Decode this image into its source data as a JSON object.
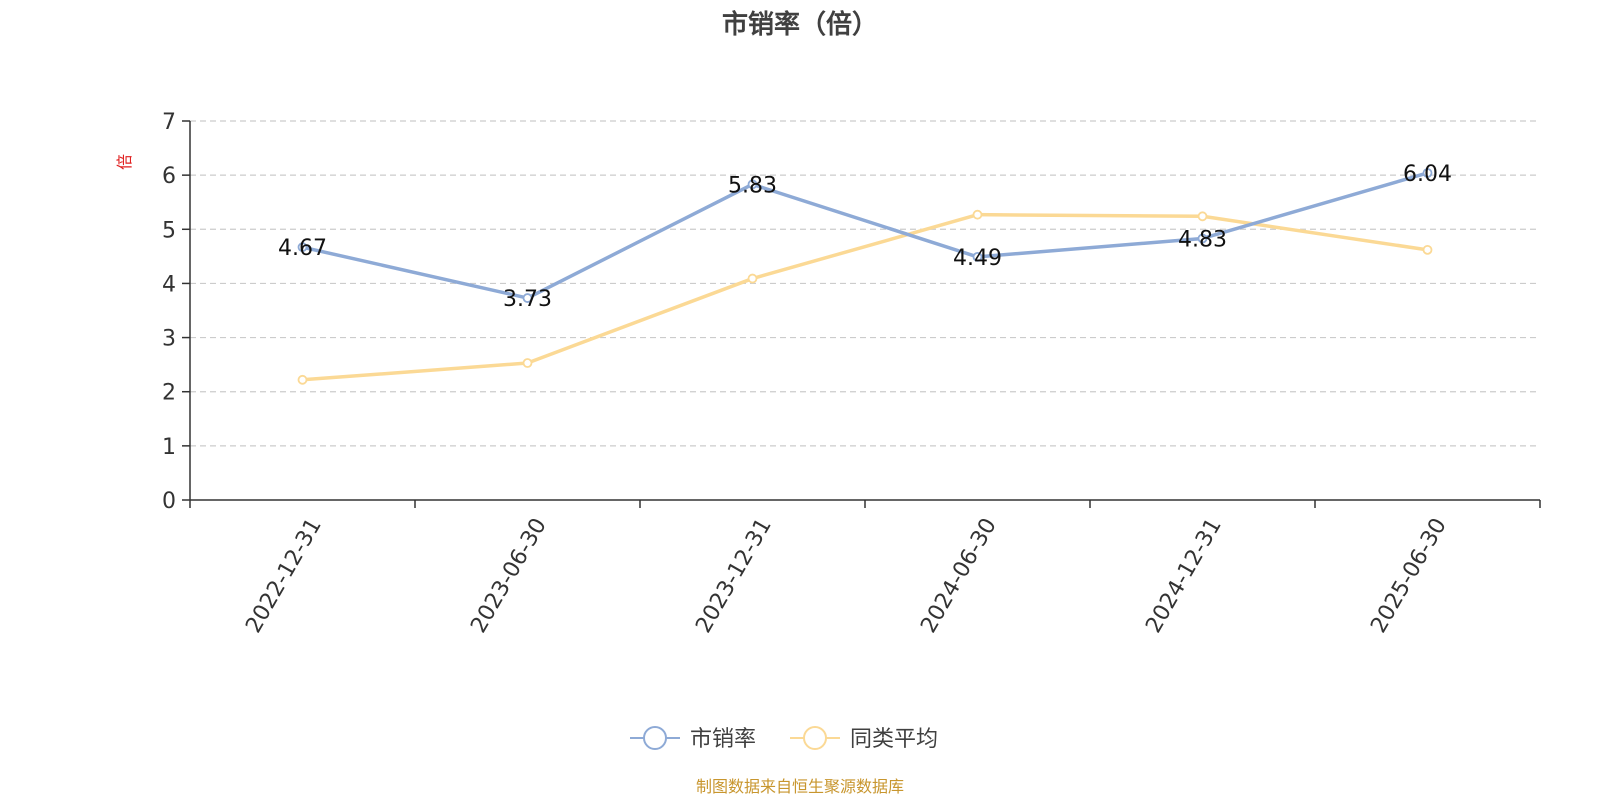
{
  "chart_data": {
    "type": "line",
    "title": "市销率（倍）",
    "ylabel": "倍",
    "xlabel": "",
    "categories": [
      "2022-12-31",
      "2023-06-30",
      "2023-12-31",
      "2024-06-30",
      "2024-12-31",
      "2025-06-30"
    ],
    "ylim": [
      0,
      7
    ],
    "yticks": [
      0,
      1,
      2,
      3,
      4,
      5,
      6,
      7
    ],
    "grid": true,
    "legend_position": "bottom",
    "series": [
      {
        "name": "市销率",
        "color": "#8eaad6",
        "values": [
          4.67,
          3.73,
          5.83,
          4.49,
          4.83,
          6.04
        ],
        "labels": [
          "4.67",
          "3.73",
          "5.83",
          "4.49",
          "4.83",
          "6.04"
        ],
        "show_data_labels": true
      },
      {
        "name": "同类平均",
        "color": "#fbd995",
        "values": [
          2.22,
          2.53,
          4.09,
          5.27,
          5.24,
          4.62
        ],
        "show_data_labels": false
      }
    ],
    "colors": {
      "title": "#404040",
      "axis": "#333333",
      "grid": "#cccccc",
      "ylabel": "#e02020",
      "source": "#c8962e",
      "legend_text": "#404040"
    }
  },
  "source_note": "制图数据来自恒生聚源数据库"
}
